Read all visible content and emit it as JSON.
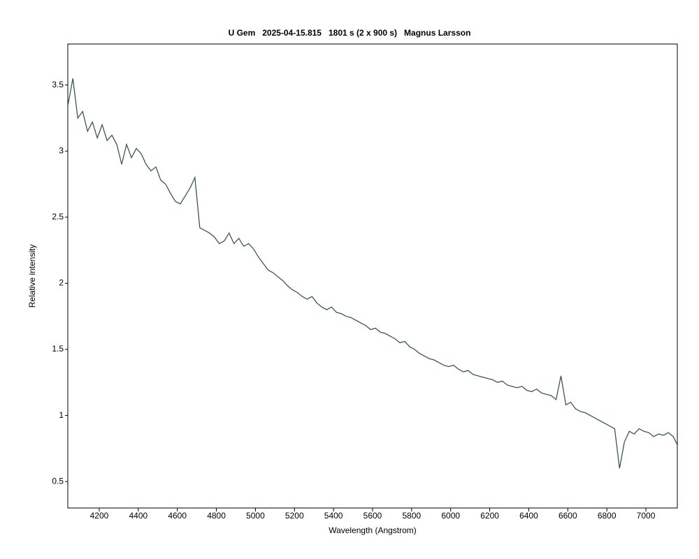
{
  "chart_data": {
    "type": "line",
    "title": "U Gem   2025-04-15.815   1801 s (2 x 900 s)   Magnus Larsson",
    "x_label": "Wavelength (Angstrom)",
    "y_label": "Relative intensity",
    "xlim": [
      4039,
      7161
    ],
    "ylim": [
      0.3,
      3.81
    ],
    "xticks": [
      4200,
      4400,
      4600,
      4800,
      5000,
      5200,
      5400,
      5600,
      5800,
      6000,
      6200,
      6400,
      6600,
      6800,
      7000
    ],
    "yticks": [
      0.5,
      1,
      1.5,
      2,
      2.5,
      3,
      3.5
    ],
    "series": [
      {
        "color": "#3d5558",
        "x": [
          4040,
          4065,
          4090,
          4115,
          4140,
          4165,
          4190,
          4215,
          4240,
          4265,
          4290,
          4315,
          4340,
          4365,
          4390,
          4415,
          4440,
          4465,
          4490,
          4515,
          4540,
          4565,
          4590,
          4615,
          4640,
          4665,
          4690,
          4715,
          4740,
          4765,
          4790,
          4815,
          4840,
          4865,
          4890,
          4915,
          4940,
          4965,
          4990,
          5015,
          5040,
          5065,
          5090,
          5115,
          5140,
          5165,
          5190,
          5215,
          5240,
          5265,
          5290,
          5315,
          5340,
          5365,
          5390,
          5415,
          5440,
          5465,
          5490,
          5515,
          5540,
          5565,
          5590,
          5615,
          5640,
          5665,
          5690,
          5715,
          5740,
          5765,
          5790,
          5815,
          5840,
          5865,
          5890,
          5915,
          5940,
          5965,
          5990,
          6015,
          6040,
          6065,
          6090,
          6115,
          6140,
          6165,
          6190,
          6215,
          6240,
          6265,
          6290,
          6315,
          6340,
          6365,
          6390,
          6415,
          6440,
          6465,
          6490,
          6515,
          6540,
          6565,
          6590,
          6615,
          6640,
          6665,
          6690,
          6715,
          6740,
          6765,
          6790,
          6815,
          6840,
          6865,
          6890,
          6915,
          6940,
          6965,
          6990,
          7015,
          7040,
          7065,
          7090,
          7115,
          7140,
          7160
        ],
        "values": [
          3.35,
          3.55,
          3.25,
          3.3,
          3.15,
          3.22,
          3.1,
          3.2,
          3.08,
          3.12,
          3.05,
          2.9,
          3.05,
          2.95,
          3.02,
          2.98,
          2.9,
          2.85,
          2.88,
          2.78,
          2.75,
          2.68,
          2.62,
          2.6,
          2.66,
          2.72,
          2.8,
          2.42,
          2.4,
          2.38,
          2.35,
          2.3,
          2.32,
          2.38,
          2.3,
          2.34,
          2.28,
          2.3,
          2.26,
          2.2,
          2.15,
          2.1,
          2.08,
          2.05,
          2.02,
          1.98,
          1.95,
          1.93,
          1.9,
          1.88,
          1.9,
          1.85,
          1.82,
          1.8,
          1.82,
          1.78,
          1.77,
          1.75,
          1.74,
          1.72,
          1.7,
          1.68,
          1.65,
          1.66,
          1.63,
          1.62,
          1.6,
          1.58,
          1.55,
          1.56,
          1.52,
          1.5,
          1.47,
          1.45,
          1.43,
          1.42,
          1.4,
          1.38,
          1.37,
          1.38,
          1.35,
          1.33,
          1.34,
          1.31,
          1.3,
          1.29,
          1.28,
          1.27,
          1.25,
          1.26,
          1.23,
          1.22,
          1.21,
          1.22,
          1.19,
          1.18,
          1.2,
          1.17,
          1.16,
          1.15,
          1.12,
          1.3,
          1.08,
          1.1,
          1.05,
          1.03,
          1.02,
          1.0,
          0.98,
          0.96,
          0.94,
          0.92,
          0.9,
          0.6,
          0.8,
          0.88,
          0.86,
          0.9,
          0.88,
          0.87,
          0.84,
          0.86,
          0.85,
          0.87,
          0.84,
          0.78
        ]
      }
    ]
  }
}
